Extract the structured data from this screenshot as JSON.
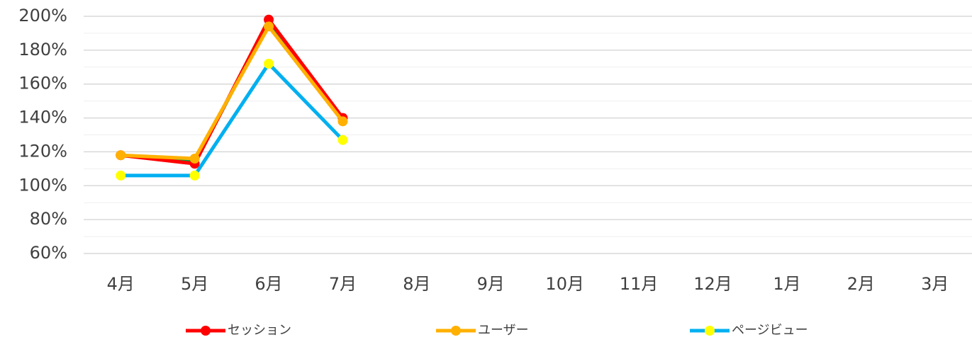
{
  "chart_data": {
    "type": "line",
    "categories": [
      "4月",
      "5月",
      "6月",
      "7月",
      "8月",
      "9月",
      "10月",
      "11月",
      "12月",
      "1月",
      "2月",
      "3月"
    ],
    "series": [
      {
        "color": "#00a040",
        "values": [
          118,
          114,
          196,
          138,
          null,
          null,
          null,
          null,
          null,
          null,
          null,
          null
        ]
      },
      {
        "name": "セッション",
        "color": "#ff0000",
        "marker_color": "#ff0000",
        "values": [
          118,
          113,
          198,
          140,
          null,
          null,
          null,
          null,
          null,
          null,
          null,
          null
        ]
      },
      {
        "name": "ユーザー",
        "color": "#ffb000",
        "marker_color": "#ffb000",
        "values": [
          118,
          116,
          194,
          138,
          null,
          null,
          null,
          null,
          null,
          null,
          null,
          null
        ]
      },
      {
        "name": "ページビュー",
        "color": "#00b0f0",
        "marker_color": "#ffff00",
        "values": [
          106,
          106,
          172,
          127,
          null,
          null,
          null,
          null,
          null,
          null,
          null,
          null
        ]
      }
    ],
    "ylim": [
      60,
      200
    ],
    "yticks": [
      {
        "value": 60,
        "label": "60%"
      },
      {
        "value": 80,
        "label": "80%"
      },
      {
        "value": 100,
        "label": "100%"
      },
      {
        "value": 120,
        "label": "120%"
      },
      {
        "value": 140,
        "label": "140%"
      },
      {
        "value": 160,
        "label": "160%"
      },
      {
        "value": 180,
        "label": "180%"
      },
      {
        "value": 200,
        "label": "200%"
      }
    ],
    "grid": true,
    "minor_grid": true,
    "legend": "bottom"
  }
}
